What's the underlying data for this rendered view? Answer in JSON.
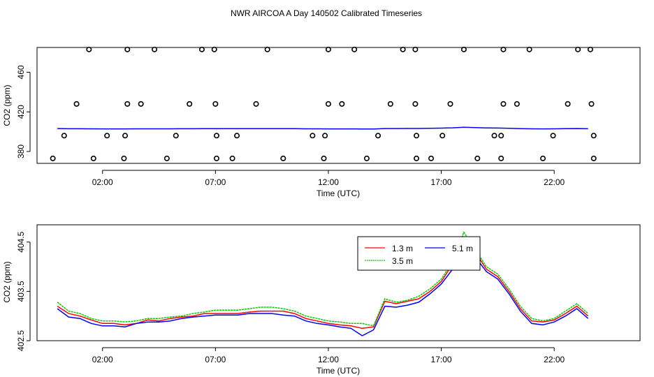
{
  "title": "NWR AIRCOA A  Day 140502  Calibrated Timeseries",
  "chart_data": [
    {
      "type": "scatter",
      "title": "NWR AIRCOA A  Day 140502  Calibrated Timeseries",
      "xlabel": "Time (UTC)",
      "ylabel": "CO2 (ppm)",
      "xlim_hours": [
        -0.9,
        25.8
      ],
      "ylim": [
        368,
        485
      ],
      "x_ticks": [
        {
          "value": 2,
          "label": "02:00"
        },
        {
          "value": 7,
          "label": "07:00"
        },
        {
          "value": 12,
          "label": "12:00"
        },
        {
          "value": 17,
          "label": "17:00"
        },
        {
          "value": 22,
          "label": "22:00"
        }
      ],
      "y_ticks": [
        {
          "value": 380,
          "label": "380"
        },
        {
          "value": 420,
          "label": "420"
        },
        {
          "value": 460,
          "label": "460"
        }
      ],
      "calibration_points": [
        {
          "x": 1.4,
          "y": 483
        },
        {
          "x": 3.1,
          "y": 483
        },
        {
          "x": 4.3,
          "y": 483
        },
        {
          "x": 6.4,
          "y": 483
        },
        {
          "x": 6.95,
          "y": 483
        },
        {
          "x": 9.3,
          "y": 483
        },
        {
          "x": 12.0,
          "y": 483
        },
        {
          "x": 13.15,
          "y": 483
        },
        {
          "x": 15.3,
          "y": 483
        },
        {
          "x": 15.85,
          "y": 483
        },
        {
          "x": 18.0,
          "y": 483
        },
        {
          "x": 19.75,
          "y": 483
        },
        {
          "x": 20.9,
          "y": 483
        },
        {
          "x": 23.05,
          "y": 483
        },
        {
          "x": 23.6,
          "y": 483
        },
        {
          "x": 0.85,
          "y": 428
        },
        {
          "x": 3.1,
          "y": 428
        },
        {
          "x": 3.7,
          "y": 428
        },
        {
          "x": 5.85,
          "y": 428
        },
        {
          "x": 7.0,
          "y": 428
        },
        {
          "x": 8.8,
          "y": 428
        },
        {
          "x": 12.0,
          "y": 428
        },
        {
          "x": 12.6,
          "y": 428
        },
        {
          "x": 14.75,
          "y": 428
        },
        {
          "x": 15.85,
          "y": 428
        },
        {
          "x": 17.4,
          "y": 428
        },
        {
          "x": 19.75,
          "y": 428
        },
        {
          "x": 20.35,
          "y": 428
        },
        {
          "x": 22.6,
          "y": 428
        },
        {
          "x": 23.65,
          "y": 428
        },
        {
          "x": 0.3,
          "y": 396
        },
        {
          "x": 2.2,
          "y": 396
        },
        {
          "x": 3.0,
          "y": 396
        },
        {
          "x": 5.25,
          "y": 396
        },
        {
          "x": 7.05,
          "y": 396
        },
        {
          "x": 7.95,
          "y": 396
        },
        {
          "x": 11.3,
          "y": 396
        },
        {
          "x": 11.85,
          "y": 396
        },
        {
          "x": 14.2,
          "y": 396
        },
        {
          "x": 15.9,
          "y": 396
        },
        {
          "x": 17.05,
          "y": 396
        },
        {
          "x": 19.35,
          "y": 396
        },
        {
          "x": 19.65,
          "y": 396
        },
        {
          "x": 21.95,
          "y": 396
        },
        {
          "x": 23.75,
          "y": 396
        },
        {
          "x": -0.2,
          "y": 373
        },
        {
          "x": 1.6,
          "y": 373
        },
        {
          "x": 2.95,
          "y": 373
        },
        {
          "x": 4.85,
          "y": 373
        },
        {
          "x": 7.05,
          "y": 373
        },
        {
          "x": 7.75,
          "y": 373
        },
        {
          "x": 10.0,
          "y": 373
        },
        {
          "x": 11.8,
          "y": 373
        },
        {
          "x": 13.7,
          "y": 373
        },
        {
          "x": 15.9,
          "y": 373
        },
        {
          "x": 16.55,
          "y": 373
        },
        {
          "x": 18.6,
          "y": 373
        },
        {
          "x": 19.65,
          "y": 373
        },
        {
          "x": 21.5,
          "y": 373
        },
        {
          "x": 23.75,
          "y": 373
        }
      ],
      "baseline_value": 403.1
    },
    {
      "type": "line",
      "xlabel": "Time (UTC)",
      "ylabel": "CO2 (ppm)",
      "xlim_hours": [
        -0.9,
        25.8
      ],
      "ylim": [
        402.5,
        404.85
      ],
      "x_ticks": [
        {
          "value": 2,
          "label": "02:00"
        },
        {
          "value": 7,
          "label": "07:00"
        },
        {
          "value": 12,
          "label": "12:00"
        },
        {
          "value": 17,
          "label": "17:00"
        },
        {
          "value": 22,
          "label": "22:00"
        }
      ],
      "y_ticks": [
        {
          "value": 402.5,
          "label": "402.5"
        },
        {
          "value": 403.5,
          "label": "403.5"
        },
        {
          "value": 404.5,
          "label": "404.5"
        }
      ],
      "legend_position": "top-center",
      "x": [
        0,
        0.5,
        1,
        1.5,
        2,
        2.5,
        3,
        3.5,
        4,
        4.5,
        5,
        5.5,
        6,
        6.5,
        7,
        7.5,
        8,
        8.5,
        9,
        9.5,
        10,
        10.5,
        11,
        11.5,
        12,
        12.5,
        13,
        13.5,
        14,
        14.5,
        15,
        15.5,
        16,
        16.5,
        17,
        17.5,
        18,
        18.5,
        19,
        19.5,
        20,
        20.5,
        21,
        21.5,
        22,
        22.5,
        23,
        23.5
      ],
      "series": [
        {
          "name": "1.3 m",
          "color": "#ff0000",
          "values": [
            403.2,
            403.05,
            403.0,
            402.92,
            402.85,
            402.85,
            402.82,
            402.85,
            402.92,
            402.9,
            402.95,
            402.98,
            403.0,
            403.05,
            403.05,
            403.05,
            403.05,
            403.08,
            403.1,
            403.1,
            403.1,
            403.05,
            402.95,
            402.9,
            402.85,
            402.82,
            402.8,
            402.75,
            402.78,
            403.3,
            403.25,
            403.3,
            403.35,
            403.5,
            403.7,
            404.05,
            404.55,
            404.3,
            403.95,
            403.8,
            403.5,
            403.15,
            402.9,
            402.88,
            402.92,
            403.05,
            403.2,
            403.0
          ]
        },
        {
          "name": "3.5 m",
          "color": "#00cc00",
          "values": [
            403.28,
            403.1,
            403.05,
            402.95,
            402.9,
            402.9,
            402.88,
            402.9,
            402.95,
            402.95,
            402.98,
            403.0,
            403.05,
            403.08,
            403.12,
            403.12,
            403.12,
            403.15,
            403.18,
            403.18,
            403.15,
            403.1,
            403.0,
            402.95,
            402.9,
            402.88,
            402.85,
            402.85,
            402.8,
            403.35,
            403.28,
            403.32,
            403.4,
            403.55,
            403.75,
            404.1,
            404.7,
            404.35,
            404.0,
            403.85,
            403.55,
            403.2,
            402.95,
            402.9,
            402.95,
            403.1,
            403.25,
            403.05
          ]
        },
        {
          "name": "5.1 m",
          "color": "#0000ff",
          "values": [
            403.15,
            402.98,
            402.95,
            402.85,
            402.8,
            402.8,
            402.78,
            402.85,
            402.88,
            402.88,
            402.9,
            402.95,
            402.98,
            403.0,
            403.02,
            403.02,
            403.02,
            403.05,
            403.05,
            403.05,
            403.02,
            403.0,
            402.9,
            402.85,
            402.82,
            402.78,
            402.75,
            402.6,
            402.72,
            403.2,
            403.18,
            403.22,
            403.28,
            403.45,
            403.65,
            403.95,
            404.6,
            404.2,
            403.9,
            403.75,
            403.45,
            403.1,
            402.85,
            402.82,
            402.88,
            403.0,
            403.15,
            402.95
          ]
        }
      ]
    }
  ]
}
